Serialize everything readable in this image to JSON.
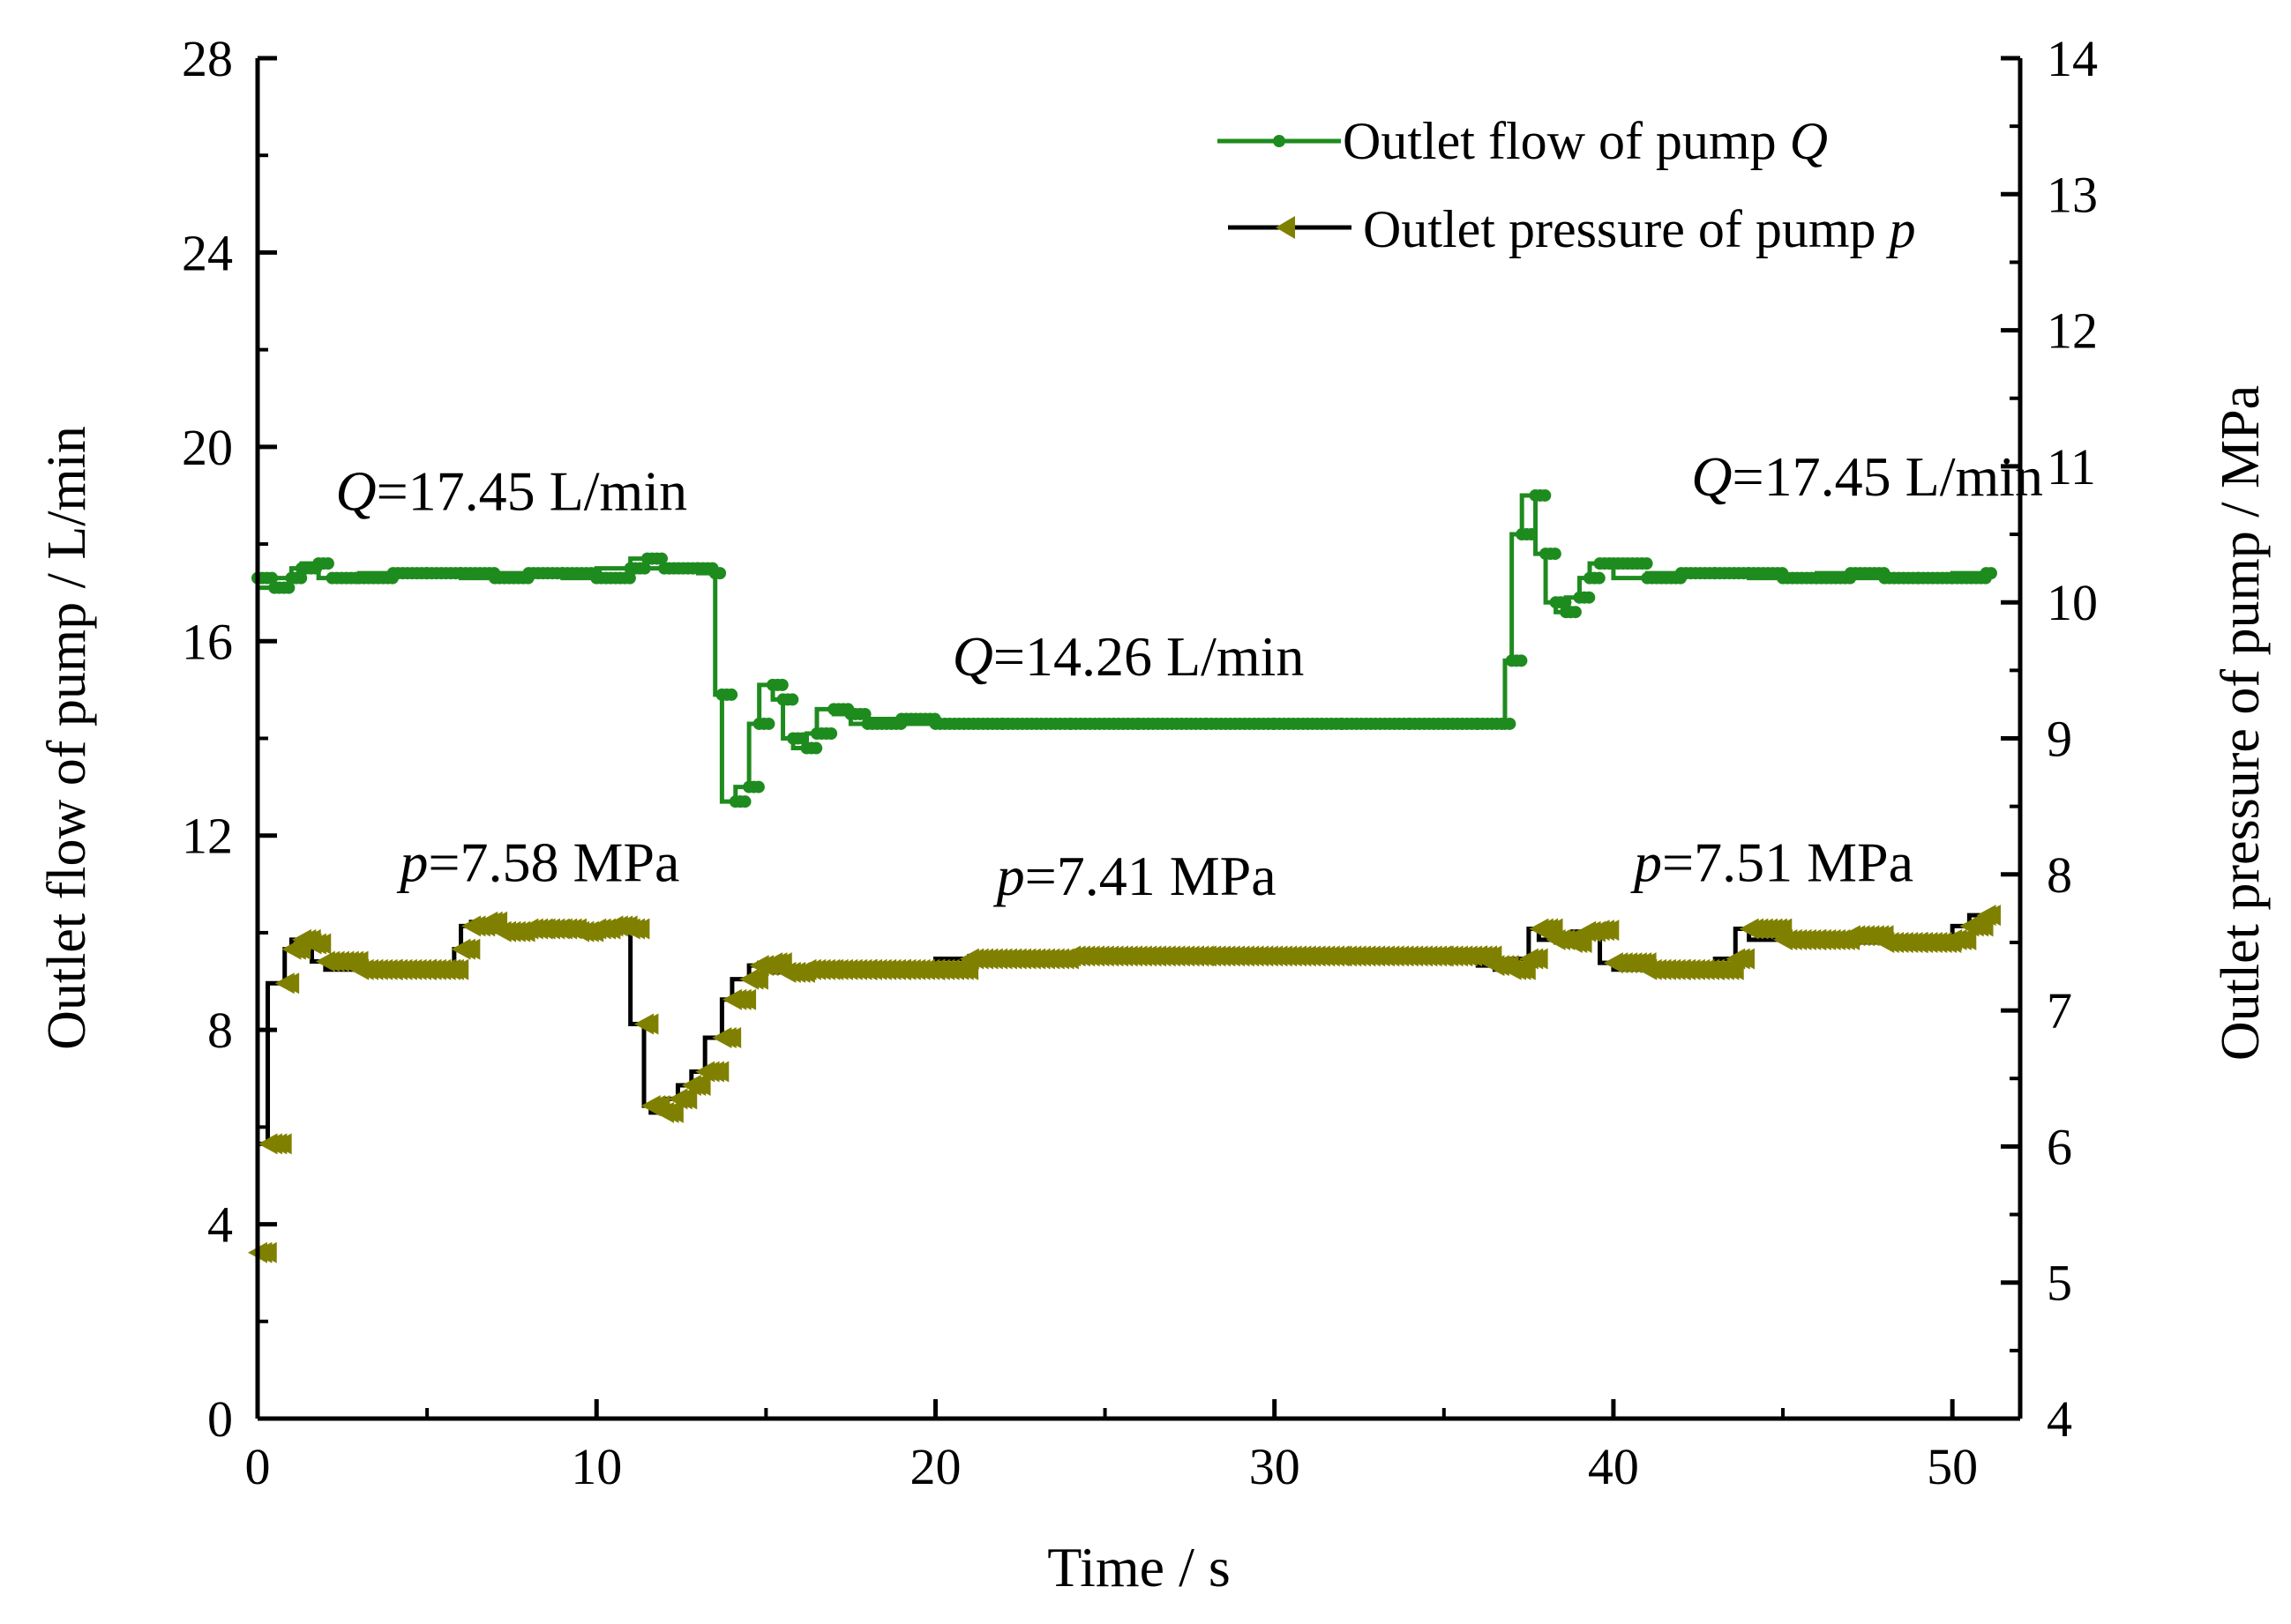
{
  "chart_data": {
    "type": "line",
    "xlabel": "Time / s",
    "ylabel_left": "Outlet flow of pump  / L/min",
    "ylabel_right": "Outlet pressure of pump  / MPa",
    "xlim": [
      0,
      52
    ],
    "ylim_left": [
      0,
      28
    ],
    "ylim_right": [
      4,
      14
    ],
    "x_ticks": [
      "0",
      "10",
      "20",
      "30",
      "40",
      "50"
    ],
    "y_left_ticks": [
      "0",
      "4",
      "8",
      "12",
      "16",
      "20",
      "24",
      "28"
    ],
    "y_right_ticks": [
      "4",
      "5",
      "6",
      "7",
      "8",
      "9",
      "10",
      "11",
      "12",
      "13",
      "14"
    ],
    "grid": false,
    "legend_position": "top-right",
    "colors": {
      "flow": "#1E8B1E",
      "pressure": "#808000",
      "pressure_line": "#000000",
      "axis": "#000000"
    },
    "legend": [
      {
        "text": "Outlet flow of pump ",
        "symbol": "Q"
      },
      {
        "text": "Outlet pressure of pump ",
        "symbol": "p"
      }
    ],
    "annotations": [
      {
        "symbol": "Q",
        "text": "=17.45 L/min",
        "x": 2.3,
        "y": 18.7,
        "axis": "left"
      },
      {
        "symbol": "Q",
        "text": "=14.26 L/min",
        "x": 20.5,
        "y": 15.3,
        "axis": "left"
      },
      {
        "symbol": "Q",
        "text": "=17.45 L/min",
        "x": 42.3,
        "y": 19.0,
        "axis": "left"
      },
      {
        "symbol": "p",
        "text": "=7.58 MPa",
        "x": 4.2,
        "y": 7.95,
        "axis": "right"
      },
      {
        "symbol": "p",
        "text": "=7.41 MPa",
        "x": 21.8,
        "y": 7.85,
        "axis": "right"
      },
      {
        "symbol": "p",
        "text": "=7.51 MPa",
        "x": 40.6,
        "y": 7.95,
        "axis": "right"
      }
    ],
    "series": [
      {
        "name": "Outlet flow of pump Q",
        "axis": "left",
        "marker": "dot",
        "x": [
          0,
          0.5,
          1.0,
          1.3,
          1.8,
          2.2,
          3.0,
          4.0,
          5.0,
          6.0,
          7.0,
          8.0,
          9.0,
          10.0,
          11.0,
          11.5,
          12.0,
          13.0,
          13.5,
          13.7,
          14.1,
          14.5,
          14.8,
          15.2,
          15.5,
          15.8,
          16.2,
          16.5,
          17.0,
          17.5,
          18.0,
          19.0,
          20.0,
          22.0,
          24.0,
          26.0,
          28.0,
          30.0,
          32.0,
          34.0,
          36.0,
          36.8,
          37.0,
          37.3,
          37.7,
          38.0,
          38.3,
          38.6,
          39.0,
          39.3,
          39.6,
          40.0,
          41.0,
          42.0,
          43.0,
          44.0,
          45.0,
          46.0,
          47.0,
          48.0,
          49.0,
          50.0,
          51.0
        ],
        "y": [
          17.3,
          17.1,
          17.3,
          17.5,
          17.6,
          17.3,
          17.3,
          17.4,
          17.4,
          17.4,
          17.3,
          17.4,
          17.4,
          17.3,
          17.5,
          17.7,
          17.5,
          17.5,
          17.4,
          14.9,
          12.7,
          13.0,
          14.3,
          15.1,
          14.8,
          14.0,
          13.8,
          14.1,
          14.6,
          14.5,
          14.3,
          14.4,
          14.3,
          14.3,
          14.3,
          14.3,
          14.3,
          14.3,
          14.3,
          14.3,
          14.3,
          14.3,
          15.6,
          18.2,
          19.0,
          17.8,
          16.8,
          16.6,
          16.9,
          17.3,
          17.6,
          17.6,
          17.3,
          17.4,
          17.4,
          17.4,
          17.3,
          17.3,
          17.4,
          17.3,
          17.3,
          17.3,
          17.4
        ]
      },
      {
        "name": "Outlet pressure of pump p",
        "axis": "right",
        "marker": "triangle-left",
        "x": [
          0,
          0.3,
          0.8,
          1.0,
          1.3,
          1.6,
          2.0,
          3.0,
          4.0,
          5.0,
          5.8,
          6.0,
          6.3,
          6.8,
          7.2,
          8.0,
          8.5,
          9.0,
          9.5,
          10.0,
          10.5,
          11.0,
          11.4,
          11.6,
          12.0,
          12.4,
          12.8,
          13.2,
          13.7,
          14.0,
          14.5,
          14.8,
          15.2,
          15.6,
          16.2,
          17.0,
          18.0,
          19.0,
          20.0,
          21.0,
          24.0,
          28.0,
          32.0,
          35.0,
          36.0,
          36.5,
          37.0,
          37.5,
          37.8,
          38.3,
          38.8,
          39.2,
          39.6,
          40.0,
          41.0,
          42.0,
          43.0,
          43.6,
          44.0,
          45.0,
          46.0,
          47.0,
          48.0,
          49.0,
          50.0,
          50.5,
          51.0
        ],
        "y": [
          5.22,
          6.02,
          7.2,
          7.45,
          7.52,
          7.49,
          7.36,
          7.3,
          7.3,
          7.3,
          7.3,
          7.45,
          7.62,
          7.65,
          7.58,
          7.6,
          7.6,
          7.6,
          7.58,
          7.6,
          7.62,
          7.6,
          6.9,
          6.3,
          6.25,
          6.35,
          6.45,
          6.55,
          6.8,
          7.08,
          7.23,
          7.33,
          7.35,
          7.28,
          7.3,
          7.3,
          7.3,
          7.3,
          7.3,
          7.38,
          7.4,
          7.4,
          7.4,
          7.4,
          7.4,
          7.33,
          7.3,
          7.38,
          7.6,
          7.52,
          7.5,
          7.58,
          7.59,
          7.35,
          7.3,
          7.3,
          7.3,
          7.38,
          7.6,
          7.52,
          7.52,
          7.55,
          7.5,
          7.5,
          7.52,
          7.62,
          7.7
        ]
      }
    ]
  }
}
